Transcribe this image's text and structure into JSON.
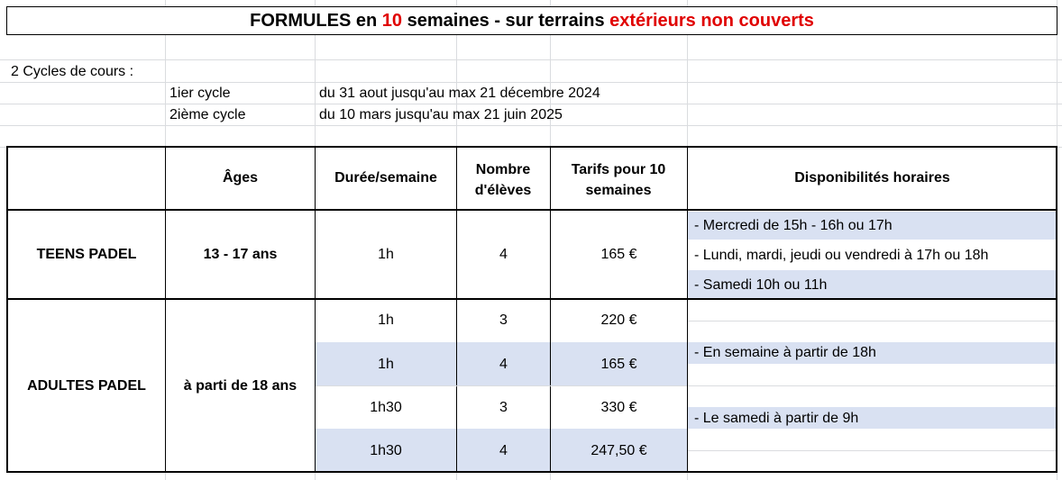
{
  "title": {
    "p1": "FORMULES",
    "p2": " en ",
    "p3": "10",
    "p4": " semaines - sur terrains ",
    "p5": "extérieurs non couverts"
  },
  "cycles": {
    "heading": "2 Cycles de cours :",
    "rows": [
      {
        "label": "1ier cycle",
        "dates": "du 31 aout jusqu'au max 21 décembre 2024"
      },
      {
        "label": "2ième cycle",
        "dates": "du 10 mars  jusqu'au max 21 juin 2025"
      }
    ]
  },
  "table": {
    "headers": [
      "",
      "Âges",
      "Durée/semaine",
      "Nombre d'élèves",
      "Tarifs pour 10 semaines",
      "Disponibilités horaires"
    ],
    "teens": {
      "name": "TEENS PADEL",
      "age": "13 - 17 ans",
      "duration": "1h",
      "students": "4",
      "price": "165 €",
      "availability": [
        "- Mercredi de 15h - 16h ou 17h",
        "- Lundi, mardi, jeudi ou vendredi à 17h ou 18h",
        "- Samedi 10h ou 11h"
      ]
    },
    "adults": {
      "name": "ADULTES PADEL",
      "age": "à parti de 18 ans",
      "rows": [
        {
          "duration": "1h",
          "students": "3",
          "price": "220 €"
        },
        {
          "duration": "1h",
          "students": "4",
          "price": "165 €"
        },
        {
          "duration": "1h30",
          "students": "3",
          "price": "330 €"
        },
        {
          "duration": "1h30",
          "students": "4",
          "price": "247,50 €"
        }
      ],
      "availability": [
        "- En semaine à partir de 18h",
        "- Le samedi à partir de 9h"
      ]
    }
  },
  "colors": {
    "highlight": "#d9e1f2",
    "accent_red": "#e00000",
    "gridline": "#dadcdf"
  }
}
